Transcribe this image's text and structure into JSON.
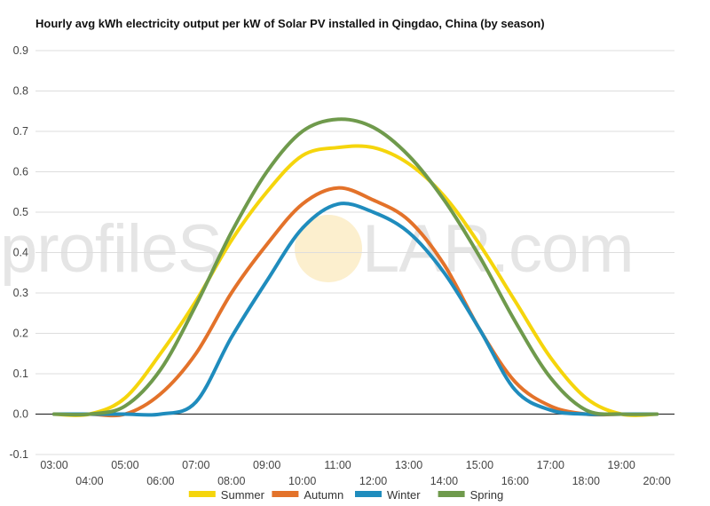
{
  "chart_data": {
    "type": "line",
    "title": "Hourly avg kWh electricity output per kW of Solar PV installed in Qingdao, China (by season)",
    "xlabel": "",
    "ylabel": "",
    "ylim": [
      -0.1,
      0.9
    ],
    "yticks": [
      "-0.1",
      "0.0",
      "0.1",
      "0.2",
      "0.3",
      "0.4",
      "0.5",
      "0.6",
      "0.7",
      "0.8",
      "0.9"
    ],
    "grid": true,
    "legend_position": "bottom",
    "x": [
      "03:00",
      "04:00",
      "05:00",
      "06:00",
      "07:00",
      "08:00",
      "09:00",
      "10:00",
      "11:00",
      "12:00",
      "13:00",
      "14:00",
      "15:00",
      "16:00",
      "17:00",
      "18:00",
      "19:00",
      "20:00"
    ],
    "series": [
      {
        "name": "Summer",
        "color": "#f5d50c",
        "values": [
          0.0,
          0.0,
          0.04,
          0.15,
          0.28,
          0.43,
          0.55,
          0.64,
          0.66,
          0.66,
          0.62,
          0.54,
          0.42,
          0.28,
          0.14,
          0.04,
          0.0,
          0.0
        ]
      },
      {
        "name": "Autumn",
        "color": "#e3722a",
        "values": [
          0.0,
          0.0,
          0.0,
          0.05,
          0.15,
          0.3,
          0.42,
          0.52,
          0.56,
          0.53,
          0.48,
          0.37,
          0.21,
          0.08,
          0.02,
          0.0,
          0.0,
          0.0
        ]
      },
      {
        "name": "Winter",
        "color": "#1f8cbd",
        "values": [
          0.0,
          0.0,
          0.0,
          0.0,
          0.03,
          0.19,
          0.33,
          0.46,
          0.52,
          0.5,
          0.45,
          0.35,
          0.21,
          0.06,
          0.01,
          0.0,
          0.0,
          0.0
        ]
      },
      {
        "name": "Spring",
        "color": "#6f9a4c",
        "values": [
          0.0,
          0.0,
          0.02,
          0.11,
          0.27,
          0.45,
          0.6,
          0.7,
          0.73,
          0.71,
          0.64,
          0.53,
          0.39,
          0.23,
          0.09,
          0.01,
          0.0,
          0.0
        ]
      }
    ]
  },
  "watermark": {
    "part1": "profileS",
    "part2": "LAR.com"
  }
}
